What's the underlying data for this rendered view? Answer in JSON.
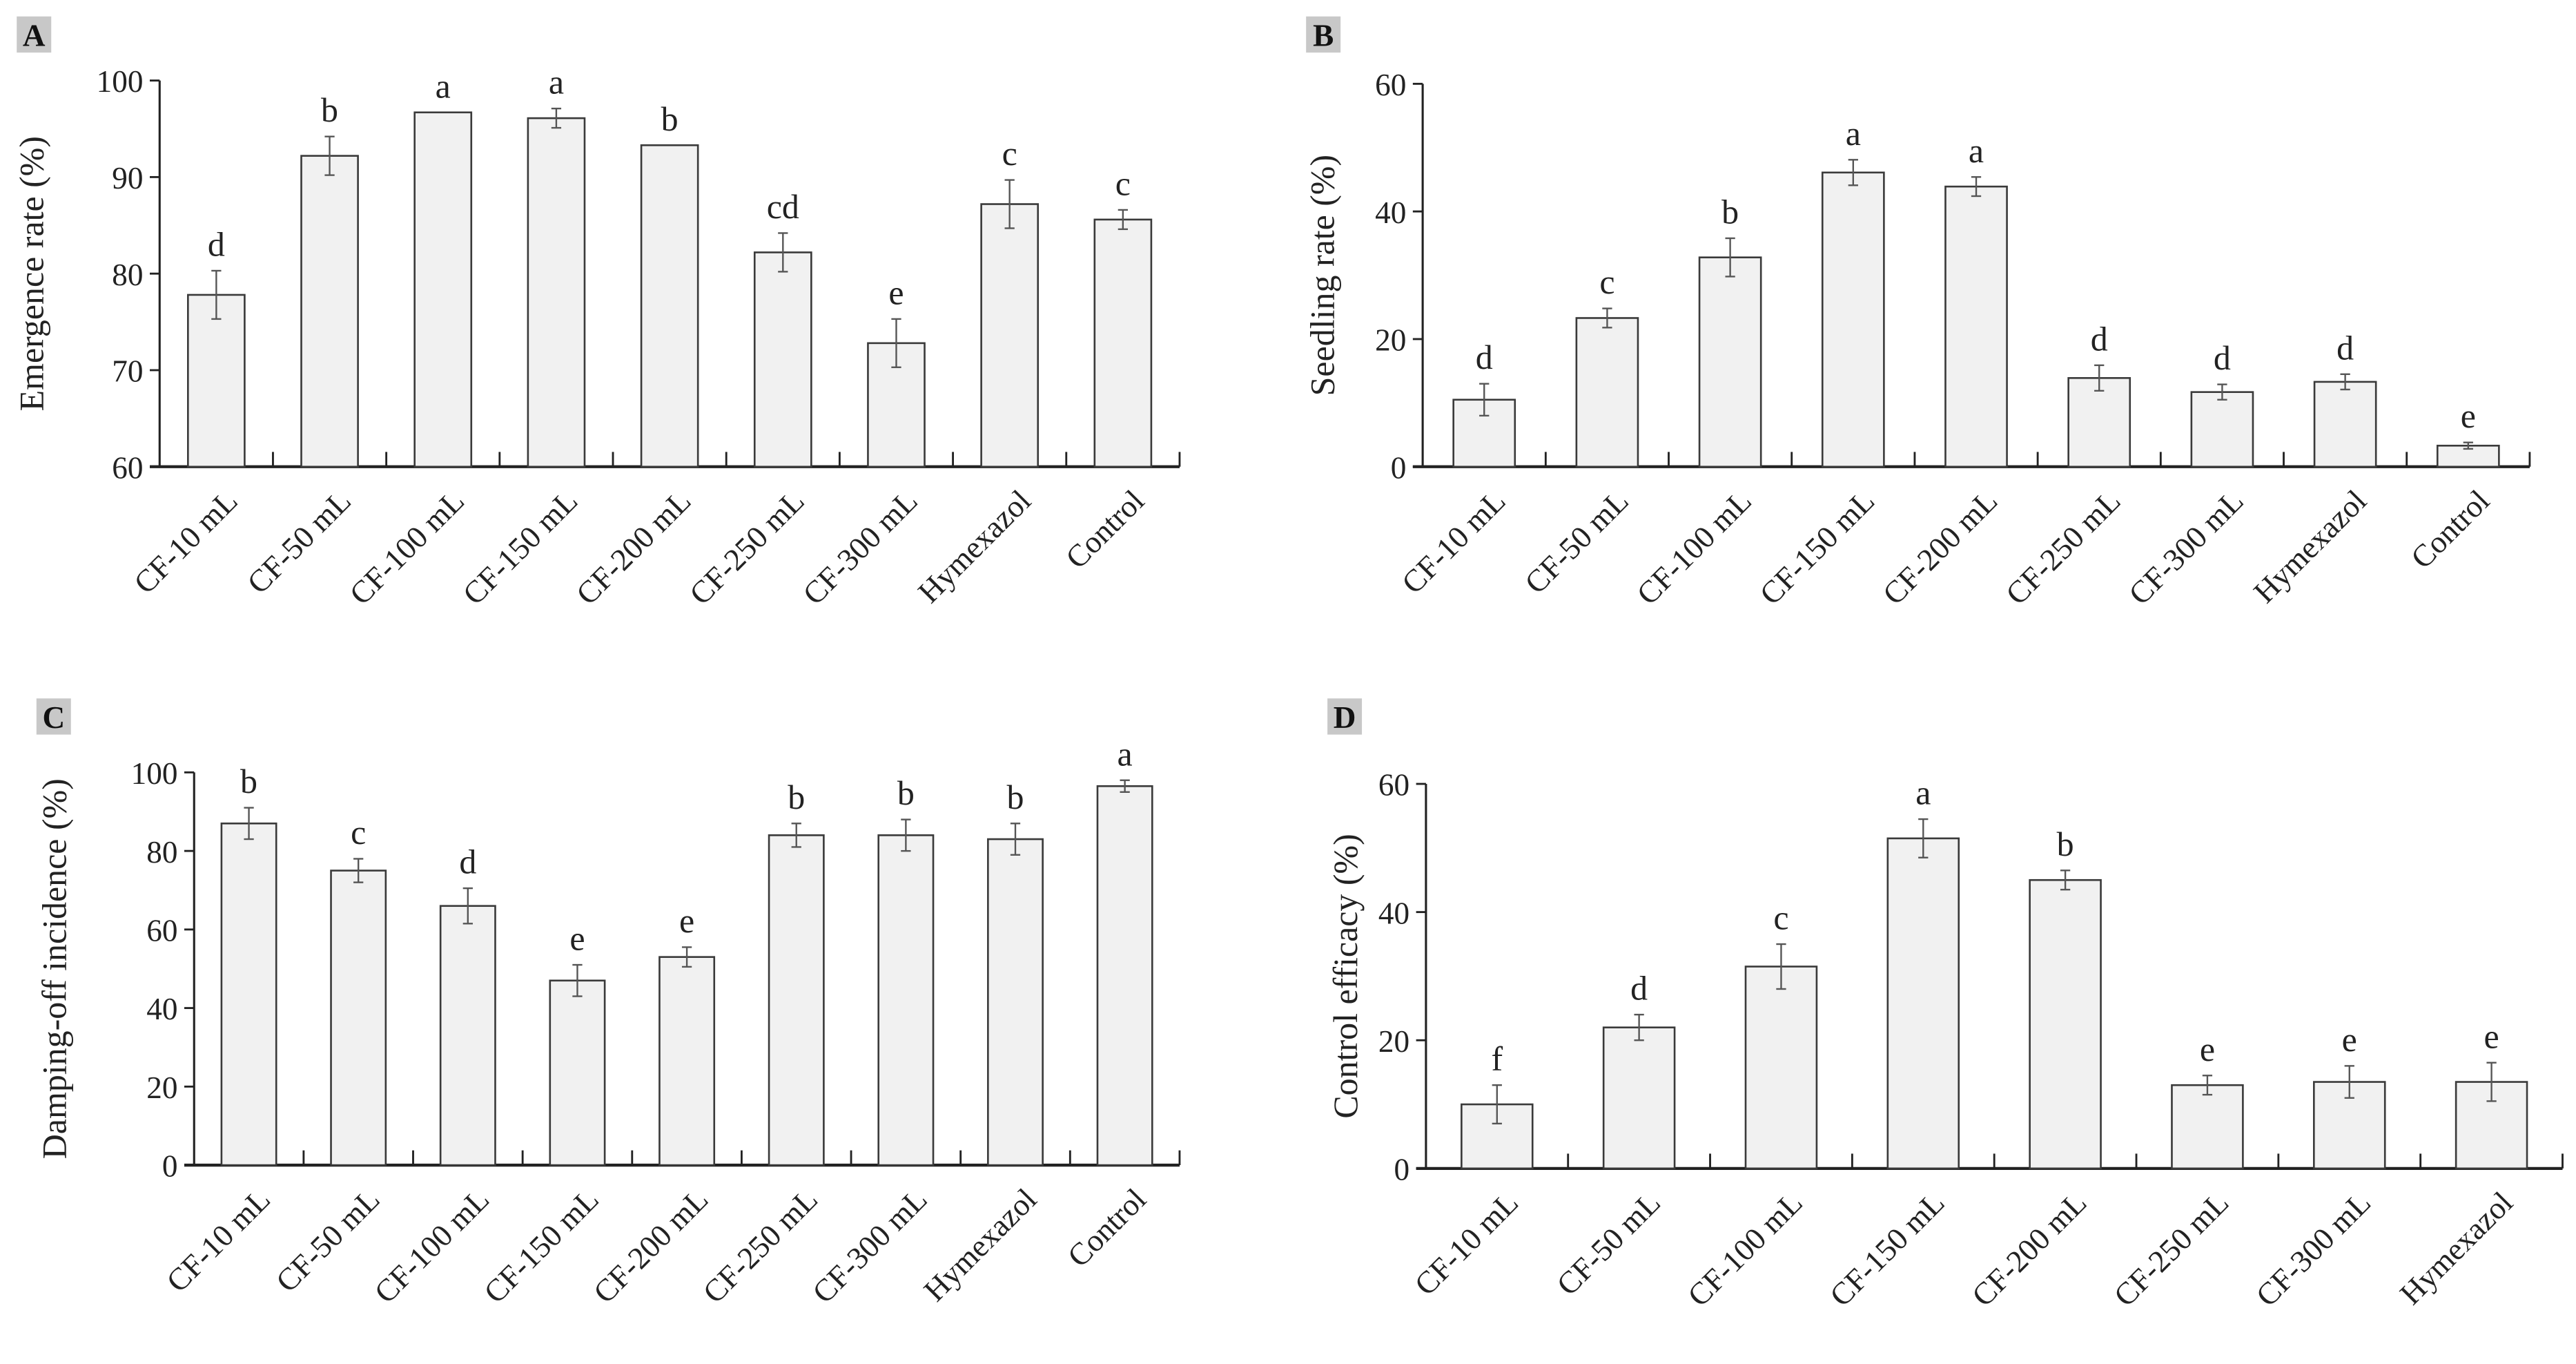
{
  "colors": {
    "bar_fill": "#f1f1f1",
    "bar_stroke": "#3a3a3a",
    "axis": "#222222",
    "label_box": "#c8c8c8"
  },
  "chart_data": [
    {
      "panel": "A",
      "type": "bar",
      "ylabel": "Emergence rate (%)",
      "ylim": [
        60,
        100
      ],
      "yticks": [
        60,
        70,
        80,
        90,
        100
      ],
      "categories": [
        "CF-10 mL",
        "CF-50 mL",
        "CF-100 mL",
        "CF-150 mL",
        "CF-200 mL",
        "CF-250 mL",
        "CF-300 mL",
        "Hymexazol",
        "Control"
      ],
      "values": [
        77.8,
        92.2,
        96.7,
        96.1,
        93.3,
        82.2,
        72.8,
        87.2,
        85.6
      ],
      "errors": [
        2.5,
        2.0,
        0,
        1.0,
        0,
        2.0,
        2.5,
        2.5,
        1.0
      ],
      "letters": [
        "d",
        "b",
        "a",
        "a",
        "b",
        "cd",
        "e",
        "c",
        "c"
      ]
    },
    {
      "panel": "B",
      "type": "bar",
      "ylabel": "Seedling rate (%)",
      "ylim": [
        0,
        60
      ],
      "yticks": [
        0,
        20,
        40,
        60
      ],
      "categories": [
        "CF-10 mL",
        "CF-50 mL",
        "CF-100 mL",
        "CF-150 mL",
        "CF-200 mL",
        "CF-250 mL",
        "CF-300 mL",
        "Hymexazol",
        "Control"
      ],
      "values": [
        10.5,
        23.3,
        32.8,
        46.1,
        43.9,
        13.9,
        11.7,
        13.3,
        3.3
      ],
      "errors": [
        2.5,
        1.5,
        3.0,
        2.0,
        1.5,
        2.0,
        1.2,
        1.2,
        0.5
      ],
      "letters": [
        "d",
        "c",
        "b",
        "a",
        "a",
        "d",
        "d",
        "d",
        "e"
      ]
    },
    {
      "panel": "C",
      "type": "bar",
      "ylabel": "Damping-off incidence (%)",
      "ylim": [
        0,
        100
      ],
      "yticks": [
        0,
        20,
        40,
        60,
        80,
        100
      ],
      "categories": [
        "CF-10 mL",
        "CF-50 mL",
        "CF-100 mL",
        "CF-150 mL",
        "CF-200 mL",
        "CF-250 mL",
        "CF-300 mL",
        "Hymexazol",
        "Control"
      ],
      "values": [
        87,
        75,
        66,
        47,
        53,
        84,
        84,
        83,
        96.5
      ],
      "errors": [
        4,
        3,
        4.5,
        4,
        2.5,
        3,
        4,
        4,
        1.5
      ],
      "letters": [
        "b",
        "c",
        "d",
        "e",
        "e",
        "b",
        "b",
        "b",
        "a"
      ]
    },
    {
      "panel": "D",
      "type": "bar",
      "ylabel": "Control efficacy (%)",
      "ylim": [
        0,
        60
      ],
      "yticks": [
        0,
        20,
        40,
        60
      ],
      "categories": [
        "CF-10 mL",
        "CF-50 mL",
        "CF-100 mL",
        "CF-150 mL",
        "CF-200 mL",
        "CF-250 mL",
        "CF-300 mL",
        "Hymexazol"
      ],
      "values": [
        10,
        22,
        31.5,
        51.5,
        45,
        13,
        13.5,
        13.5
      ],
      "errors": [
        3,
        2,
        3.5,
        3,
        1.5,
        1.5,
        2.5,
        3
      ],
      "letters": [
        "f",
        "d",
        "c",
        "a",
        "b",
        "e",
        "e",
        "e"
      ]
    }
  ]
}
